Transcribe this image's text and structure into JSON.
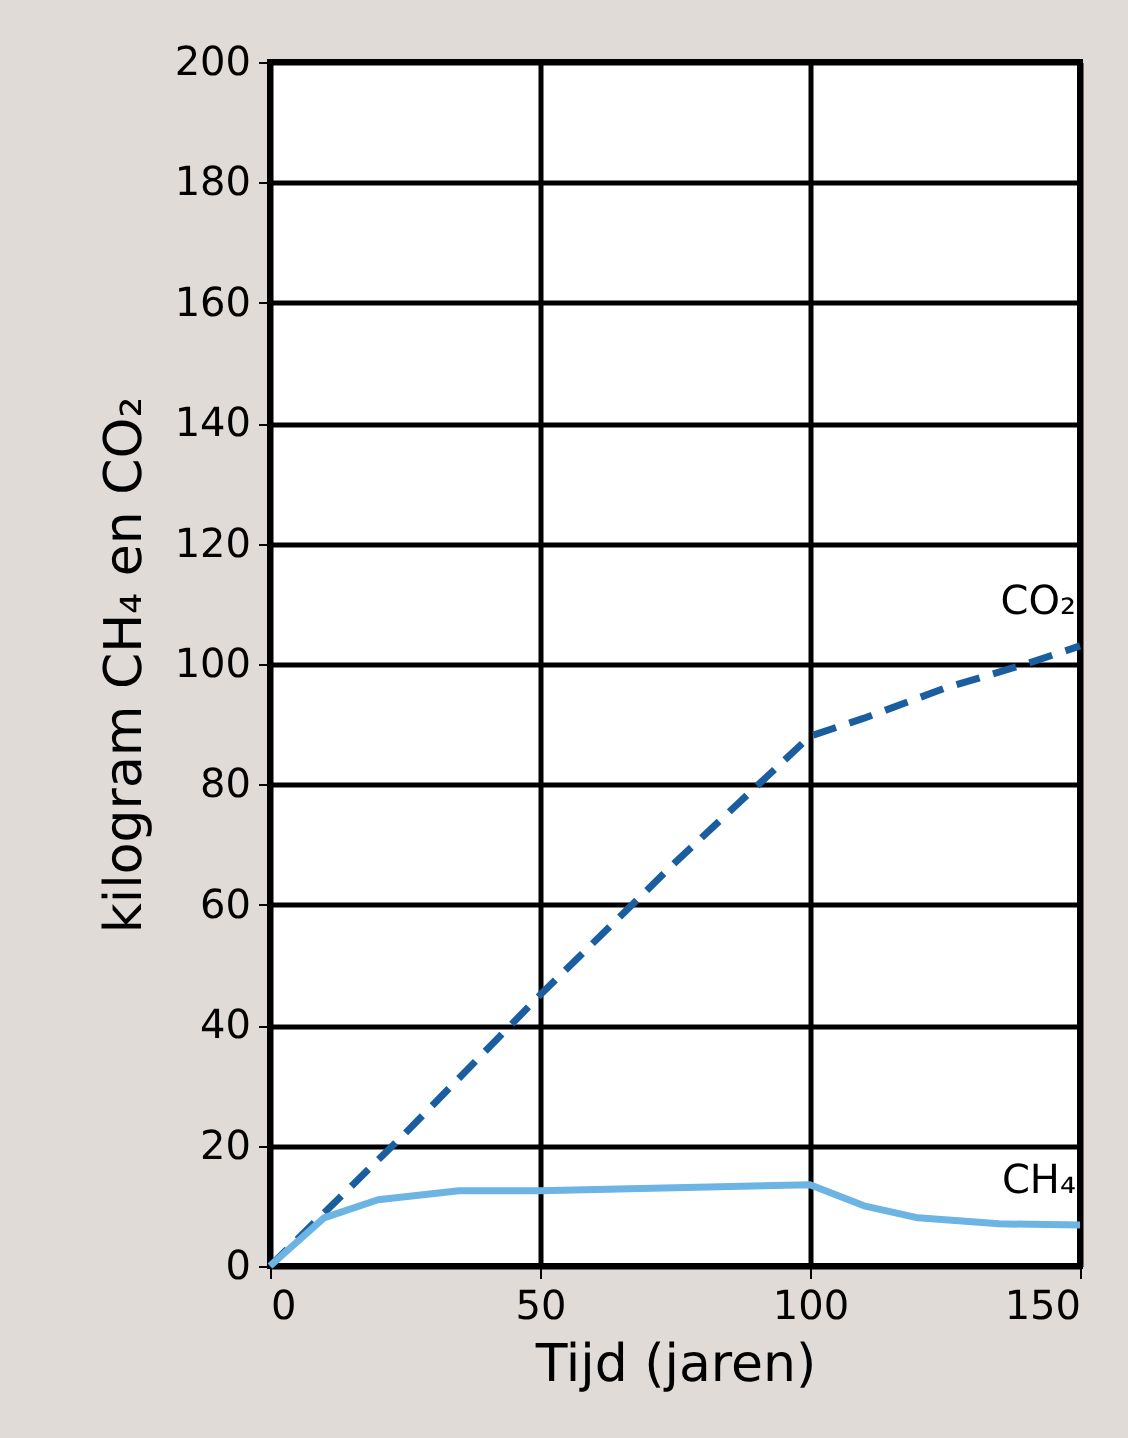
{
  "chart_data": {
    "type": "line",
    "xlabel": "Tijd (jaren)",
    "ylabel": "kilogram CH₄ en CO₂",
    "series": [
      {
        "name": "CO₂",
        "color": "#1a5ea0",
        "line_style": "dashed",
        "x": [
          0,
          25,
          50,
          75,
          100,
          110,
          125,
          140,
          150
        ],
        "values": [
          0,
          22,
          45,
          67,
          88,
          91,
          96,
          100,
          103
        ]
      },
      {
        "name": "CH₄",
        "color": "#6cb4e4",
        "line_style": "solid",
        "x": [
          0,
          10,
          20,
          35,
          50,
          75,
          100,
          110,
          120,
          135,
          150
        ],
        "values": [
          0,
          8,
          11,
          12.5,
          12.5,
          13,
          13.5,
          10,
          8,
          7,
          6.8
        ]
      }
    ],
    "xlim": [
      0,
      150
    ],
    "xticks": [
      0,
      50,
      100,
      150
    ],
    "ylim": [
      0,
      200
    ],
    "yticks": [
      0,
      20,
      40,
      60,
      80,
      100,
      120,
      140,
      160,
      180,
      200
    ],
    "grid": true,
    "legend": false,
    "marker": "none"
  }
}
